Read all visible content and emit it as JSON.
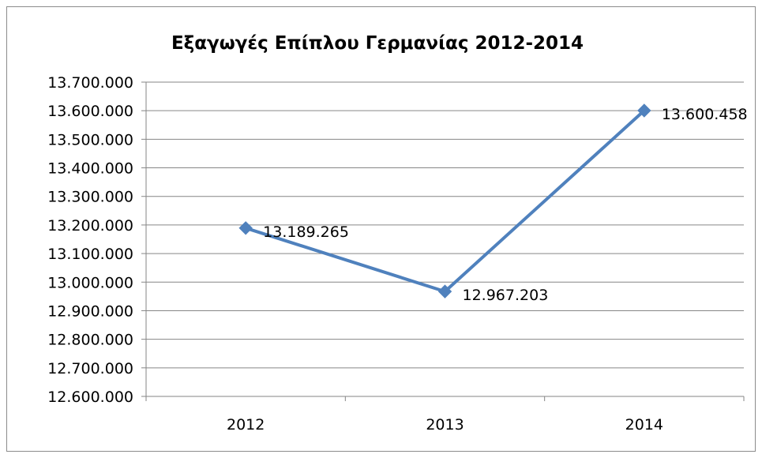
{
  "chart_data": {
    "type": "line",
    "title": "Εξαγωγές Επίπλου Γερμανίας 2012-2014",
    "xlabel": "",
    "ylabel": "",
    "categories": [
      "2012",
      "2013",
      "2014"
    ],
    "series": [
      {
        "values": [
          13189265,
          12967203,
          13600458
        ],
        "data_labels": [
          "13.189.265",
          "12.967.203",
          "13.600.458"
        ],
        "color": "#4f81bd",
        "marker": "diamond"
      }
    ],
    "ylim": [
      12600000,
      13700000
    ],
    "ytick_values": [
      12600000,
      12700000,
      12800000,
      12900000,
      13000000,
      13100000,
      13200000,
      13300000,
      13400000,
      13500000,
      13600000,
      13700000
    ],
    "ytick_labels": [
      "12.600.000",
      "12.700.000",
      "12.800.000",
      "12.900.000",
      "13.000.000",
      "13.100.000",
      "13.200.000",
      "13.300.000",
      "13.400.000",
      "13.500.000",
      "13.600.000",
      "13.700.000"
    ],
    "grid": true,
    "legend": "none",
    "colors": {
      "line": "#4f81bd",
      "grid": "#868686",
      "axis": "#868686",
      "border": "#8c8c8c"
    }
  }
}
